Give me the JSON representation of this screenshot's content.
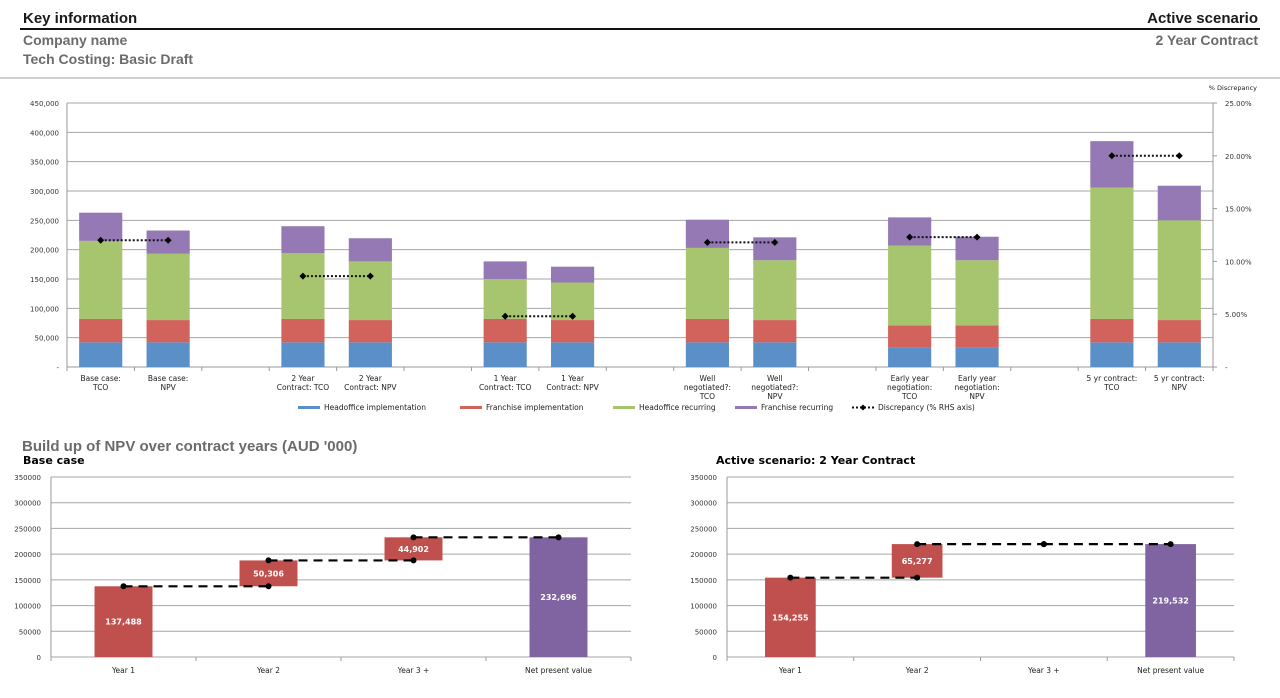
{
  "header": {
    "left_title": "Key information",
    "right_title": "Active scenario",
    "company": "Company name",
    "project": "Tech Costing: Basic Draft",
    "active_scenario": "2 Year Contract"
  },
  "section": {
    "title": "Build up of NPV over contract years (AUD '000)"
  },
  "chart_data": [
    {
      "type": "bar",
      "stacked": true,
      "title": "",
      "categories": [
        [
          "Base case:",
          "TCO"
        ],
        [
          "Base case:",
          "NPV"
        ],
        [
          "",
          ""
        ],
        [
          "2 Year",
          "Contract: TCO"
        ],
        [
          "2 Year",
          "Contract: NPV"
        ],
        [
          "",
          ""
        ],
        [
          "1 Year",
          "Contract: TCO"
        ],
        [
          "1 Year",
          "Contract: NPV"
        ],
        [
          "",
          ""
        ],
        [
          "Well",
          "negotiated?:",
          "TCO"
        ],
        [
          "Well",
          "negotiated?:",
          "NPV"
        ],
        [
          "",
          ""
        ],
        [
          "Early year",
          "negotiation:",
          "TCO"
        ],
        [
          "Early year",
          "negotiation:",
          "NPV"
        ],
        [
          "",
          ""
        ],
        [
          "5 yr contract:",
          "TCO"
        ],
        [
          "5 yr contract:",
          "NPV"
        ]
      ],
      "series": [
        {
          "name": "Headoffice implementation",
          "color": "#5b8fc7",
          "values": [
            42000,
            42000,
            null,
            42000,
            42000,
            null,
            42000,
            42000,
            null,
            42000,
            42000,
            null,
            33000,
            33000,
            null,
            42000,
            42000
          ]
        },
        {
          "name": "Franchise implementation",
          "color": "#d2635c",
          "values": [
            40000,
            38000,
            null,
            40000,
            38000,
            null,
            40000,
            38000,
            null,
            40000,
            38000,
            null,
            38000,
            38000,
            null,
            40000,
            38000
          ]
        },
        {
          "name": "Headoffice recurring",
          "color": "#a7c46e",
          "values": [
            133000,
            113000,
            null,
            112000,
            100000,
            null,
            68000,
            64000,
            null,
            121000,
            102000,
            null,
            136000,
            111000,
            null,
            224000,
            170000
          ]
        },
        {
          "name": "Franchise recurring",
          "color": "#9479b4",
          "values": [
            48000,
            39700,
            null,
            46000,
            39500,
            null,
            30000,
            27000,
            null,
            48000,
            39000,
            null,
            48000,
            40000,
            null,
            79000,
            59000
          ]
        }
      ],
      "line_series": {
        "name": "Discrepancy (% RHS axis)",
        "axis": "right",
        "values": [
          12.0,
          12.0,
          null,
          8.6,
          8.6,
          null,
          4.8,
          4.8,
          null,
          11.8,
          11.8,
          null,
          12.3,
          12.3,
          null,
          20.0,
          20.0
        ]
      },
      "ylabel": "",
      "y_ticks": [
        "-",
        "50,000",
        "100,000",
        "150,000",
        "200,000",
        "250,000",
        "300,000",
        "350,000",
        "400,000",
        "450,000"
      ],
      "ylim": [
        0,
        450000
      ],
      "y2label": "% Discrepancy",
      "y2_ticks": [
        "-",
        "5.00%",
        "10.00%",
        "15.00%",
        "20.00%",
        "25.00%"
      ],
      "y2lim": [
        0,
        25
      ],
      "grid": true,
      "legend": "bottom",
      "legend_entries": [
        "Headoffice implementation",
        "Franchise implementation",
        "Headoffice recurring",
        "Franchise recurring",
        "Discrepancy (% RHS axis)"
      ]
    },
    {
      "type": "bar",
      "subtype": "waterfall",
      "title": "Base case",
      "categories": [
        "Year 1",
        "Year 2",
        "Year 3 +",
        "Net present value"
      ],
      "values": [
        137488,
        50306,
        44902,
        232696
      ],
      "labels": [
        "137,488",
        "50,306",
        "44,902",
        "232,696"
      ],
      "bar_colors": [
        "#c0504d",
        "#c0504d",
        "#c0504d",
        "#8064a2"
      ],
      "ylim": [
        0,
        350000
      ],
      "y_ticks": [
        "0",
        "50000",
        "100000",
        "150000",
        "200000",
        "250000",
        "300000",
        "350000"
      ],
      "grid": true
    },
    {
      "type": "bar",
      "subtype": "waterfall",
      "title": "Active scenario: 2 Year Contract",
      "categories": [
        "Year 1",
        "Year 2",
        "Year 3 +",
        "Net present value"
      ],
      "values": [
        154255,
        65277,
        0,
        219532
      ],
      "labels": [
        "154,255",
        "65,277",
        "",
        "219,532"
      ],
      "bar_colors": [
        "#c0504d",
        "#c0504d",
        "#c0504d",
        "#8064a2"
      ],
      "ylim": [
        0,
        350000
      ],
      "y_ticks": [
        "0",
        "50000",
        "100000",
        "150000",
        "200000",
        "250000",
        "300000",
        "350000"
      ],
      "grid": true
    }
  ]
}
